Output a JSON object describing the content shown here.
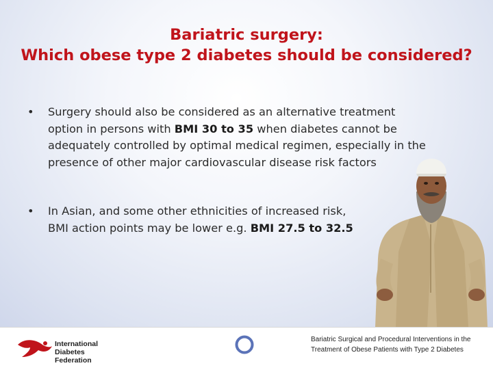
{
  "slide": {
    "title_line1": "Bariatric surgery:",
    "title_line2": "Which obese type 2 diabetes should be considered?",
    "bullet_symbol": "•",
    "bullets": [
      {
        "line1": "Surgery should also be considered as an alternative treatment",
        "line2_pre": "option in persons with ",
        "line2_bold": "BMI 30 to 35",
        "line2_post": " when diabetes cannot be",
        "line3": "adequately controlled by optimal medical regimen, especially in the",
        "line4": "presence of other major cardiovascular disease risk factors"
      },
      {
        "line1": "In Asian, and some other ethnicities of increased risk,",
        "line2_pre": "BMI action points may be lower e.g. ",
        "line2_bold": "BMI 27.5 to 32.5"
      }
    ]
  },
  "footer": {
    "logo_lines": [
      "International",
      "Diabetes",
      "Federation"
    ],
    "reference_line1": "Bariatric Surgical and Procedural Interventions in the",
    "reference_line2": "Treatment of Obese Patients with Type 2 Diabetes"
  },
  "colors": {
    "title": "#c0141b",
    "body_text": "#2b2b2b",
    "blue_circle": "#5b73b8",
    "logo_red": "#c0141b"
  }
}
